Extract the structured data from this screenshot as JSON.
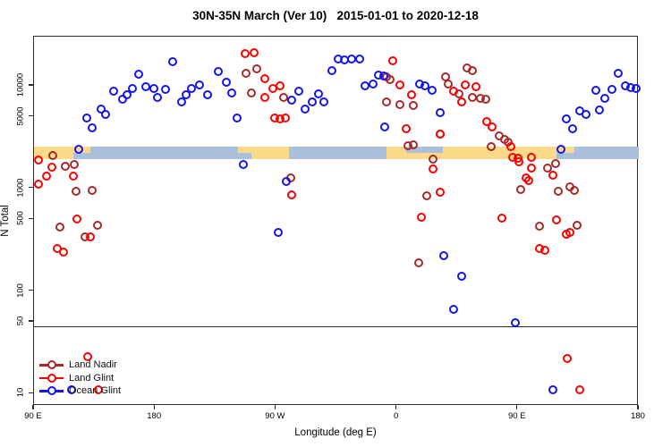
{
  "title": "30N-35N March (Ver 10)   2015-01-01 to 2020-12-18",
  "axes": {
    "x": {
      "label": "Longitude (deg E)",
      "min": 90,
      "max": 540,
      "ticks": [
        {
          "deg": 90,
          "label": "90 E"
        },
        {
          "deg": 180,
          "label": "180"
        },
        {
          "deg": 270,
          "label": "90 W"
        },
        {
          "deg": 360,
          "label": "0"
        },
        {
          "deg": 450,
          "label": "90 E"
        },
        {
          "deg": 540,
          "label": "180"
        }
      ]
    },
    "y": {
      "label": "N Total",
      "scale": "log",
      "min": 7.6,
      "max": 30170,
      "ticks": [
        {
          "v": 10,
          "label": "10"
        },
        {
          "v": 50,
          "label": "50"
        },
        {
          "v": 100,
          "label": "100"
        },
        {
          "v": 500,
          "label": "500"
        },
        {
          "v": 1000,
          "label": "1000"
        },
        {
          "v": 5000,
          "label": "5000"
        },
        {
          "v": 10000,
          "label": "10000"
        }
      ]
    }
  },
  "threshold_line": {
    "value": 45
  },
  "map_band": {
    "value_range": [
      1930,
      2550
    ],
    "ocean_color": "#A9BFDC",
    "land_color": "#FBDB8A",
    "land_segments": [
      {
        "from": 90,
        "to": 119,
        "part": "full"
      },
      {
        "from": 119,
        "to": 132,
        "part": "top"
      },
      {
        "from": 242,
        "to": 252,
        "part": "top"
      },
      {
        "from": 252,
        "to": 280,
        "part": "full"
      },
      {
        "from": 352,
        "to": 367,
        "part": "full"
      },
      {
        "from": 367,
        "to": 394,
        "part": "bottom"
      },
      {
        "from": 394,
        "to": 479,
        "part": "full"
      },
      {
        "from": 479,
        "to": 492,
        "part": "top"
      }
    ]
  },
  "legend": {
    "items": [
      {
        "label": "Land Nadir",
        "color": "#A52A2A"
      },
      {
        "label": "Land Glint",
        "color": "#FF0000"
      },
      {
        "label": "Ocean Glint",
        "color": "#1414F0"
      }
    ]
  },
  "chart_data": {
    "type": "scatter",
    "xlabel": "Longitude (deg E)",
    "ylabel": "N Total",
    "x_axis_note": "axis degrees 90..540 wrap the globe: 270=90W, 360=0, 450=90E, 540=180",
    "series": [
      {
        "name": "Land Nadir",
        "color": "#A52A2A",
        "points": [
          [
            104,
            2100
          ],
          [
            113,
            1640
          ],
          [
            120,
            1700
          ],
          [
            121,
            940
          ],
          [
            133,
            955
          ],
          [
            109,
            420
          ],
          [
            128,
            340
          ],
          [
            137,
            440
          ],
          [
            248,
            13200
          ],
          [
            256,
            14700
          ],
          [
            252,
            8500
          ],
          [
            276,
            7700
          ],
          [
            281,
            1270
          ],
          [
            352,
            12200
          ],
          [
            355,
            11500
          ],
          [
            352,
            7000
          ],
          [
            362,
            6600
          ],
          [
            372,
            6400
          ],
          [
            368,
            2600
          ],
          [
            372,
            2660
          ],
          [
            392,
            3380
          ],
          [
            387,
            1930
          ],
          [
            376,
            190
          ],
          [
            382,
            850
          ],
          [
            396,
            12200
          ],
          [
            398,
            10400
          ],
          [
            412,
            14900
          ],
          [
            416,
            14100
          ],
          [
            406,
            8400
          ],
          [
            416,
            7700
          ],
          [
            422,
            7600
          ],
          [
            426,
            7400
          ],
          [
            436,
            3250
          ],
          [
            440,
            3000
          ],
          [
            430,
            2550
          ],
          [
            443,
            2830
          ],
          [
            452,
            975
          ],
          [
            472,
            1580
          ],
          [
            478,
            1740
          ],
          [
            480,
            940
          ],
          [
            492,
            955
          ],
          [
            489,
            1040
          ],
          [
            466,
            430
          ],
          [
            494,
            440
          ]
        ]
      },
      {
        "name": "Land Glint",
        "color": "#FF0000",
        "points": [
          [
            93,
            1890
          ],
          [
            103,
            1610
          ],
          [
            99,
            1320
          ],
          [
            93,
            1100
          ],
          [
            119,
            1320
          ],
          [
            122,
            500
          ],
          [
            132,
            340
          ],
          [
            107,
            260
          ],
          [
            112,
            240
          ],
          [
            247,
            20600
          ],
          [
            254,
            21000
          ],
          [
            262,
            11800
          ],
          [
            268,
            9400
          ],
          [
            273,
            10000
          ],
          [
            262,
            7700
          ],
          [
            269,
            4850
          ],
          [
            273,
            4750
          ],
          [
            277,
            4850
          ],
          [
            282,
            860
          ],
          [
            357,
            17500
          ],
          [
            362,
            10200
          ],
          [
            367,
            3800
          ],
          [
            371,
            8200
          ],
          [
            378,
            520
          ],
          [
            387,
            1550
          ],
          [
            392,
            920
          ],
          [
            392,
            3380
          ],
          [
            411,
            10200
          ],
          [
            419,
            9800
          ],
          [
            402,
            8900
          ],
          [
            408,
            7000
          ],
          [
            427,
            4500
          ],
          [
            431,
            4000
          ],
          [
            445,
            2550
          ],
          [
            446,
            2010
          ],
          [
            450,
            1970
          ],
          [
            460,
            2010
          ],
          [
            460,
            1580
          ],
          [
            456,
            1270
          ],
          [
            458,
            1190
          ],
          [
            476,
            1340
          ],
          [
            438,
            510
          ],
          [
            451,
            1820
          ],
          [
            479,
            490
          ],
          [
            486,
            360
          ],
          [
            489,
            370
          ],
          [
            466,
            260
          ],
          [
            470,
            250
          ],
          [
            487,
            22
          ],
          [
            496,
            11
          ],
          [
            130,
            23
          ],
          [
            138,
            11
          ]
        ]
      },
      {
        "name": "Ocean Glint",
        "color": "#1414F0",
        "points": [
          [
            129,
            4850
          ],
          [
            140,
            5900
          ],
          [
            143,
            5260
          ],
          [
            133,
            3890
          ],
          [
            123,
            2400
          ],
          [
            149,
            8870
          ],
          [
            156,
            7400
          ],
          [
            159,
            8180
          ],
          [
            163,
            9400
          ],
          [
            173,
            9800
          ],
          [
            179,
            9400
          ],
          [
            182,
            7700
          ],
          [
            188,
            9200
          ],
          [
            193,
            17200
          ],
          [
            200,
            7000
          ],
          [
            203,
            8200
          ],
          [
            207,
            9400
          ],
          [
            213,
            10200
          ],
          [
            219,
            8200
          ],
          [
            227,
            13800
          ],
          [
            233,
            10800
          ],
          [
            237,
            8500
          ],
          [
            241,
            4850
          ],
          [
            168,
            13000
          ],
          [
            287,
            8900
          ],
          [
            282,
            7300
          ],
          [
            292,
            5900
          ],
          [
            297,
            7000
          ],
          [
            302,
            8400
          ],
          [
            306,
            7000
          ],
          [
            312,
            14100
          ],
          [
            316,
            18300
          ],
          [
            321,
            17900
          ],
          [
            326,
            18300
          ],
          [
            332,
            18300
          ],
          [
            336,
            10000
          ],
          [
            342,
            10400
          ],
          [
            346,
            12700
          ],
          [
            350,
            12500
          ],
          [
            351,
            4000
          ],
          [
            377,
            10400
          ],
          [
            381,
            10000
          ],
          [
            386,
            9000
          ],
          [
            392,
            5500
          ],
          [
            246,
            1710
          ],
          [
            278,
            1170
          ],
          [
            272,
            370
          ],
          [
            395,
            220
          ],
          [
            408,
            140
          ],
          [
            402,
            66
          ],
          [
            448,
            49
          ],
          [
            482,
            2400
          ],
          [
            486,
            4750
          ],
          [
            491,
            3800
          ],
          [
            496,
            5700
          ],
          [
            501,
            5300
          ],
          [
            508,
            9000
          ],
          [
            511,
            5800
          ],
          [
            515,
            7600
          ],
          [
            520,
            9200
          ],
          [
            525,
            13200
          ],
          [
            530,
            10000
          ],
          [
            534,
            9600
          ],
          [
            538,
            9400
          ],
          [
            476,
            11
          ],
          [
            118,
            11
          ]
        ]
      }
    ]
  }
}
